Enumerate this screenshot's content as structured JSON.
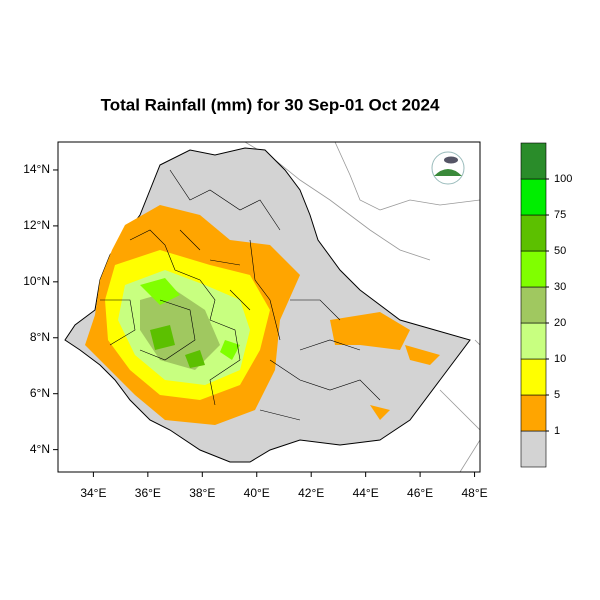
{
  "title": "Total Rainfall (mm) for 30 Sep-01 Oct 2024",
  "xlim": [
    32.7,
    48.2
  ],
  "ylim": [
    3.2,
    15.0
  ],
  "xticks": [
    {
      "value": 34,
      "label": "34°E"
    },
    {
      "value": 36,
      "label": "36°E"
    },
    {
      "value": 38,
      "label": "38°E"
    },
    {
      "value": 40,
      "label": "40°E"
    },
    {
      "value": 42,
      "label": "42°E"
    },
    {
      "value": 44,
      "label": "44°E"
    },
    {
      "value": 46,
      "label": "46°E"
    },
    {
      "value": 48,
      "label": "48°E"
    }
  ],
  "yticks": [
    {
      "value": 4,
      "label": "4°N"
    },
    {
      "value": 6,
      "label": "6°N"
    },
    {
      "value": 8,
      "label": "8°N"
    },
    {
      "value": 10,
      "label": "10°N"
    },
    {
      "value": 12,
      "label": "12°N"
    },
    {
      "value": 14,
      "label": "14°N"
    }
  ],
  "colorbar": {
    "levels": [
      1,
      5,
      10,
      20,
      30,
      50,
      75,
      100
    ],
    "colors": [
      "#d3d3d3",
      "#ffa500",
      "#ffff00",
      "#c8ff80",
      "#a0c860",
      "#80ff00",
      "#5cc000",
      "#00ee00",
      "#2a8c2a"
    ]
  }
}
